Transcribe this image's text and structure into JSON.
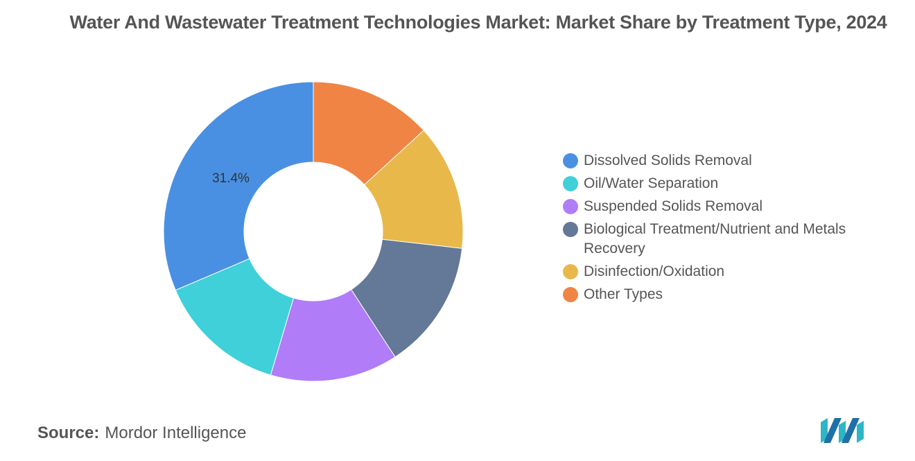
{
  "title": "Water And Wastewater Treatment Technologies Market: Market Share by Treatment Type, 2024",
  "source": {
    "label": "Source:",
    "text": "Mordor Intelligence"
  },
  "chart_data": {
    "type": "pie",
    "donut": true,
    "title": "Water And Wastewater Treatment Technologies Market: Market Share by Treatment Type, 2024",
    "categories": [
      "Dissolved Solids Removal",
      "Oil/Water Separation",
      "Suspended Solids Removal",
      "Biological Treatment/Nutrient and Metals Recovery",
      "Disinfection/Oxidation",
      "Other Types"
    ],
    "values": [
      31.4,
      14.0,
      13.8,
      14.0,
      13.6,
      13.2
    ],
    "colors": [
      "#4a90e2",
      "#3fd0da",
      "#b07cf8",
      "#647897",
      "#e8b84a",
      "#f08444"
    ],
    "data_labels": [
      "31.4%",
      "",
      "",
      "",
      "",
      ""
    ],
    "legend_position": "right",
    "slice_order": [
      5,
      4,
      3,
      2,
      1,
      0
    ]
  }
}
